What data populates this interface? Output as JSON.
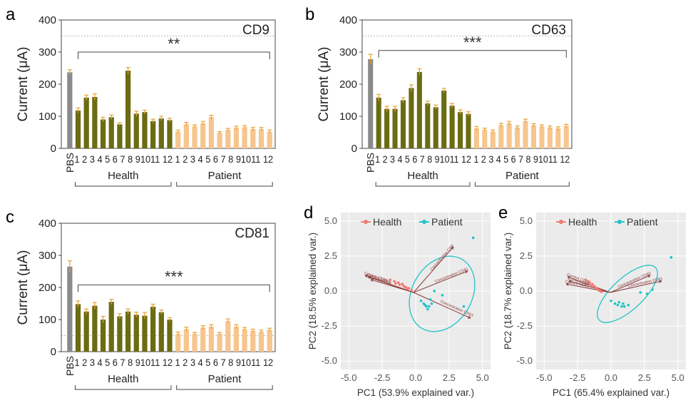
{
  "colors": {
    "pbs": "#8a8a8a",
    "health": "#6b6b12",
    "patient": "#f7c58e",
    "error": "#e8a030",
    "health_pca": "#f07b72",
    "patient_pca": "#22c3c8",
    "arrow": "#8b3a3a",
    "pca_bg": "#ebebeb"
  },
  "chart_data": [
    {
      "panel": "a",
      "type": "bar",
      "title": "CD9",
      "ylabel": "Current (μA)",
      "ylim": [
        0,
        400
      ],
      "yticks": [
        "0",
        "100",
        "200",
        "300",
        "400"
      ],
      "dashed_line": 350,
      "categories": [
        "PBS",
        "1",
        "2",
        "3",
        "4",
        "5",
        "6",
        "7",
        "8",
        "9",
        "10",
        "11",
        "12",
        "1",
        "2",
        "3",
        "4",
        "5",
        "6",
        "7",
        "8",
        "9",
        "10",
        "11",
        "12"
      ],
      "groups": [
        {
          "name": "PBS",
          "values": [
            237
          ],
          "errors": [
            8
          ]
        },
        {
          "name": "Health",
          "values": [
            118,
            158,
            160,
            90,
            97,
            75,
            242,
            108,
            113,
            85,
            93,
            88
          ],
          "errors": [
            8,
            8,
            10,
            7,
            7,
            5,
            10,
            8,
            6,
            6,
            7,
            6
          ]
        },
        {
          "name": "Patient",
          "values": [
            52,
            75,
            68,
            78,
            97,
            48,
            57,
            64,
            66,
            60,
            60,
            52
          ],
          "errors": [
            5,
            6,
            5,
            6,
            6,
            4,
            5,
            5,
            5,
            5,
            5,
            5
          ]
        }
      ],
      "significance": "**",
      "bracket_level": 300,
      "group_labels": [
        "Health",
        "Patient"
      ],
      "xtick_text": "1 2 3 4 5 6 7 8 91011 12 1 2 3 4 5 6 7 8 91011 12"
    },
    {
      "panel": "b",
      "type": "bar",
      "title": "CD63",
      "ylabel": "Current (μA)",
      "ylim": [
        0,
        400
      ],
      "yticks": [
        "0",
        "100",
        "200",
        "300",
        "400"
      ],
      "dashed_line": 350,
      "categories": [
        "PBS",
        "1",
        "2",
        "3",
        "4",
        "5",
        "6",
        "7",
        "8",
        "9",
        "10",
        "11",
        "12",
        "1",
        "2",
        "3",
        "4",
        "5",
        "6",
        "7",
        "8",
        "9",
        "10",
        "11",
        "12"
      ],
      "groups": [
        {
          "name": "PBS",
          "values": [
            278
          ],
          "errors": [
            15
          ]
        },
        {
          "name": "Health",
          "values": [
            158,
            123,
            123,
            150,
            188,
            238,
            140,
            128,
            180,
            133,
            113,
            107
          ],
          "errors": [
            10,
            8,
            8,
            8,
            10,
            10,
            7,
            7,
            7,
            7,
            7,
            7
          ]
        },
        {
          "name": "Patient",
          "values": [
            62,
            58,
            52,
            72,
            78,
            65,
            85,
            72,
            68,
            65,
            62,
            70
          ],
          "errors": [
            6,
            5,
            5,
            6,
            6,
            5,
            6,
            5,
            5,
            5,
            5,
            5
          ]
        }
      ],
      "significance": "***",
      "bracket_level": 305,
      "group_labels": [
        "Health",
        "Patient"
      ],
      "xtick_text": "1 2 3 4 5 6 7 8 91011 12 1 2 3 4 5 6 7 8 91011 12"
    },
    {
      "panel": "c",
      "type": "bar",
      "title": "CD81",
      "ylabel": "Current (μA)",
      "ylim": [
        0,
        400
      ],
      "yticks": [
        "0",
        "100",
        "200",
        "300",
        "400"
      ],
      "dashed_line": 50,
      "categories": [
        "PBS",
        "1",
        "2",
        "3",
        "4",
        "5",
        "6",
        "7",
        "8",
        "9",
        "10",
        "11",
        "12",
        "1",
        "2",
        "3",
        "4",
        "5",
        "6",
        "7",
        "8",
        "9",
        "10",
        "11",
        "12"
      ],
      "groups": [
        {
          "name": "PBS",
          "values": [
            265
          ],
          "errors": [
            18
          ]
        },
        {
          "name": "Health",
          "values": [
            148,
            125,
            143,
            100,
            155,
            110,
            125,
            115,
            112,
            140,
            123,
            100
          ],
          "errors": [
            10,
            8,
            10,
            10,
            8,
            8,
            8,
            8,
            10,
            8,
            7,
            6
          ]
        },
        {
          "name": "Patient",
          "values": [
            55,
            70,
            55,
            75,
            78,
            55,
            95,
            78,
            70,
            65,
            62,
            68
          ],
          "errors": [
            6,
            6,
            5,
            6,
            6,
            5,
            7,
            6,
            5,
            5,
            5,
            5
          ]
        }
      ],
      "significance": "***",
      "bracket_level": 208,
      "group_labels": [
        "Health",
        "Patient"
      ],
      "xtick_text": "1 2 3 4 5 6 7 8 91011 12 1 2 3 4 5 6 7 8 91011 12"
    },
    {
      "panel": "d",
      "type": "scatter",
      "xlabel": "PC1 (53.9% explained var.)",
      "ylabel": "PC2 (18.5% explained var.)",
      "xlim": [
        -5.6,
        5.6
      ],
      "ylim": [
        -5.6,
        5.6
      ],
      "xticks": [
        "-5.0",
        "-2.5",
        "0.0",
        "2.5",
        "5.0"
      ],
      "yticks": [
        "-5.0",
        "-2.5",
        "0.0",
        "2.5",
        "5.0"
      ],
      "legend": [
        "Health",
        "Patient"
      ],
      "health_points": [
        [
          -1.9,
          0.8
        ],
        [
          -1.6,
          0.7
        ],
        [
          -1.3,
          0.6
        ],
        [
          -1.0,
          0.5
        ],
        [
          -0.8,
          0.3
        ],
        [
          -0.5,
          0.2
        ],
        [
          -1.2,
          0.45
        ],
        [
          -0.9,
          0.35
        ],
        [
          -0.6,
          0.15
        ],
        [
          -0.3,
          0.05
        ],
        [
          -1.5,
          0.55
        ],
        [
          -0.7,
          0.25
        ]
      ],
      "patient_points": [
        [
          4.3,
          3.8
        ],
        [
          2.0,
          -0.3
        ],
        [
          3.6,
          -1.1
        ],
        [
          1.2,
          -0.9
        ],
        [
          1.0,
          -1.1
        ],
        [
          0.8,
          -1.1
        ],
        [
          0.6,
          -0.9
        ],
        [
          1.1,
          -0.6
        ],
        [
          0.4,
          -0.7
        ],
        [
          0.9,
          -1.3
        ],
        [
          0.7,
          -1.0
        ],
        [
          1.4,
          0.0
        ]
      ],
      "vectors": [
        {
          "label": "Concentration CD9",
          "x": 2.8,
          "y": 3.2
        },
        {
          "label": "Concentration CD81",
          "x": 3.8,
          "y": 1.5
        },
        {
          "label": "Concentration CD63",
          "x": 4.0,
          "y": -1.8
        },
        {
          "label": "Current CD63",
          "x": -3.2,
          "y": 1.1
        },
        {
          "label": "Current CD81",
          "x": -3.4,
          "y": 1.2
        },
        {
          "label": "Current CD9",
          "x": -3.0,
          "y": 0.9
        }
      ]
    },
    {
      "panel": "e",
      "type": "scatter",
      "xlabel": "PC1 (65.4% explained var.)",
      "ylabel": "PC2 (18.7% explained var.)",
      "xlim": [
        -5.6,
        5.6
      ],
      "ylim": [
        -5.6,
        5.6
      ],
      "xticks": [
        "-5.0",
        "-2.5",
        "0.0",
        "2.5",
        "5.0"
      ],
      "yticks": [
        "-5.0",
        "-2.5",
        "0.0",
        "2.5",
        "5.0"
      ],
      "legend": [
        "Health",
        "Patient"
      ],
      "health_points": [
        [
          -1.9,
          0.8
        ],
        [
          -1.6,
          0.6
        ],
        [
          -1.4,
          0.5
        ],
        [
          -1.2,
          0.3
        ],
        [
          -1.0,
          0.1
        ],
        [
          -0.8,
          0.0
        ],
        [
          -1.5,
          0.4
        ],
        [
          -1.1,
          0.2
        ],
        [
          -0.9,
          0.05
        ],
        [
          -1.7,
          0.7
        ],
        [
          -1.3,
          0.35
        ],
        [
          -0.7,
          -0.05
        ]
      ],
      "patient_points": [
        [
          4.5,
          2.4
        ],
        [
          2.2,
          -0.1
        ],
        [
          2.7,
          -0.2
        ],
        [
          3.1,
          0.1
        ],
        [
          0.3,
          -0.9
        ],
        [
          0.5,
          -1.0
        ],
        [
          0.8,
          -1.1
        ],
        [
          1.0,
          -1.1
        ],
        [
          0.0,
          -0.7
        ],
        [
          1.3,
          -1.0
        ],
        [
          0.6,
          -0.8
        ],
        [
          0.9,
          -0.9
        ]
      ],
      "vectors": [
        {
          "label": "Concentration CD63",
          "x": 2.8,
          "y": 1.2
        },
        {
          "label": "Concentration CD81",
          "x": 3.6,
          "y": 0.8
        },
        {
          "label": "Current CD63",
          "x": -3.0,
          "y": 1.1
        },
        {
          "label": "Current CD9",
          "x": -2.9,
          "y": 0.8
        },
        {
          "label": "Current CD81",
          "x": -3.1,
          "y": 0.6
        }
      ]
    }
  ]
}
